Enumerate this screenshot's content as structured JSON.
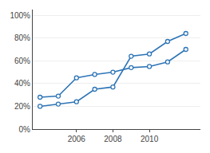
{
  "chart_data": {
    "type": "line",
    "x": [
      2004,
      2005,
      2006,
      2007,
      2008,
      2009,
      2010,
      2011,
      2012
    ],
    "series": [
      {
        "color": "#2E75B6",
        "values": [
          0.28,
          0.29,
          0.45,
          0.48,
          0.5,
          0.54,
          0.55,
          0.59,
          0.7
        ]
      },
      {
        "color": "#2E75B6",
        "values": [
          0.2,
          0.22,
          0.24,
          0.35,
          0.37,
          0.64,
          0.66,
          0.77,
          0.84
        ]
      }
    ],
    "marker": "circle",
    "line_style": "solid",
    "xlim": [
      2003.6,
      2012.8
    ],
    "xticks": [
      2006,
      2008,
      2010
    ],
    "ylim": [
      0.0,
      1.05
    ],
    "yticks": [
      {
        "value": 0.0,
        "label": "0%"
      },
      {
        "value": 0.2,
        "label": "20%"
      },
      {
        "value": 0.4,
        "label": "40%"
      },
      {
        "value": 0.6,
        "label": "60%"
      },
      {
        "value": 0.8,
        "label": "80%"
      },
      {
        "value": 1.0,
        "label": "100%"
      }
    ],
    "grid": "y"
  }
}
